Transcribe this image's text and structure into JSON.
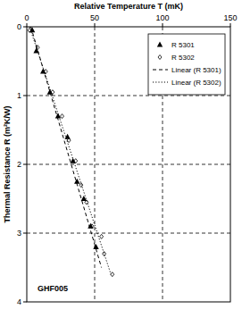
{
  "chart_data": {
    "type": "scatter",
    "x_label": "Relative Temperature T (mK)",
    "y_label": "Thermal Resistance R (m²K/W)",
    "annotation": "GHF005",
    "xlim": [
      0,
      150
    ],
    "xticks": [
      0,
      50,
      100,
      150
    ],
    "ylim": [
      0,
      4
    ],
    "yticks": [
      0,
      1,
      2,
      3,
      4
    ],
    "grid": true,
    "legend": "top-right",
    "series": [
      {
        "name": "R 5301",
        "type": "scatter",
        "marker": "triangle",
        "color": "#000000",
        "x": [
          4,
          7,
          12,
          17,
          23,
          30,
          34,
          37,
          42,
          47,
          51
        ],
        "values": [
          0.05,
          0.35,
          0.65,
          0.95,
          1.3,
          1.6,
          1.95,
          2.25,
          2.5,
          2.9,
          3.2
        ]
      },
      {
        "name": "R 5302",
        "type": "scatter",
        "marker": "diamond",
        "color": "#000000",
        "x": [
          2,
          8,
          14,
          19,
          26,
          31,
          36,
          40,
          44,
          48,
          55,
          57,
          63
        ],
        "values": [
          0.05,
          0.3,
          0.65,
          0.95,
          1.3,
          1.65,
          1.95,
          2.3,
          2.55,
          2.9,
          3.05,
          3.3,
          3.6
        ]
      },
      {
        "name": "Linear (R 5301)",
        "type": "line",
        "line_style": "dashed",
        "color": "#000000",
        "x": [
          3,
          55
        ],
        "values": [
          0,
          3.5
        ]
      },
      {
        "name": "Linear (R 5302)",
        "type": "line",
        "line_style": "dotted",
        "color": "#000000",
        "x": [
          2,
          62
        ],
        "values": [
          0,
          3.6
        ]
      }
    ]
  }
}
